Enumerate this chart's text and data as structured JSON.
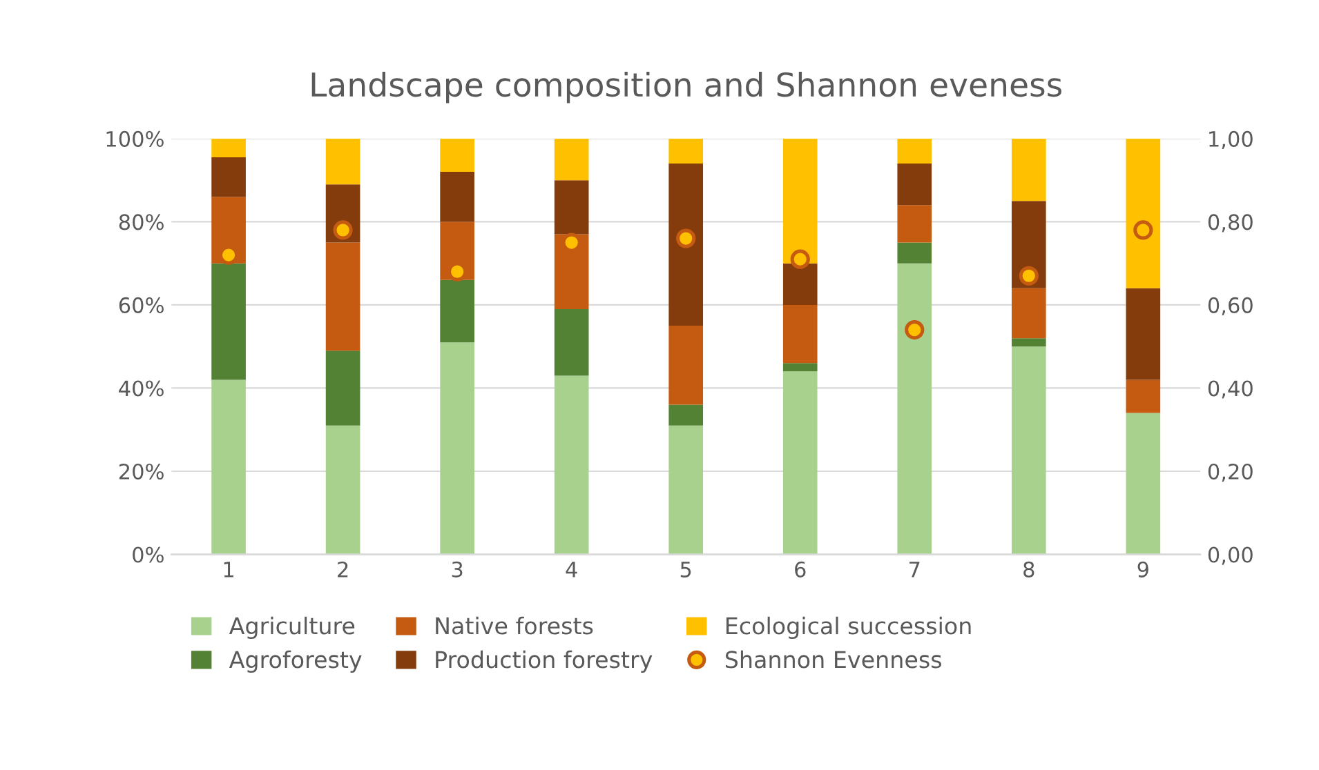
{
  "chart_data": {
    "type": "bar",
    "title": "Landscape composition and Shannon eveness",
    "stacked": true,
    "categories": [
      "1",
      "2",
      "3",
      "4",
      "5",
      "6",
      "7",
      "8",
      "9"
    ],
    "series": [
      {
        "name": "Agriculture",
        "color": "#a9d18e",
        "values": [
          42,
          31,
          51,
          43,
          31,
          44,
          70,
          50,
          34
        ]
      },
      {
        "name": "Agroforesty",
        "color": "#548235",
        "values": [
          28,
          18,
          15,
          16,
          5,
          2,
          5,
          2,
          0
        ]
      },
      {
        "name": "Native forests",
        "color": "#c55a11",
        "values": [
          16,
          26,
          14,
          18,
          19,
          14,
          9,
          12,
          8
        ]
      },
      {
        "name": "Production forestry",
        "color": "#843c0c",
        "values": [
          9.5,
          14,
          12,
          13,
          39,
          10,
          10,
          21,
          22
        ]
      },
      {
        "name": "Ecological succession",
        "color": "#ffc000",
        "values": [
          4.5,
          11,
          8,
          10,
          6,
          30,
          6,
          15,
          36
        ]
      },
      {
        "name": "Shannon Evenness",
        "type": "scatter",
        "axis": "y2",
        "color": "#ffc000",
        "values": [
          0.72,
          0.78,
          0.68,
          0.75,
          0.76,
          0.71,
          0.54,
          0.67,
          0.78
        ]
      }
    ],
    "ylim": [
      0,
      100
    ],
    "yticks": [
      {
        "value": 0,
        "label": "0%"
      },
      {
        "value": 20,
        "label": "20%"
      },
      {
        "value": 40,
        "label": "40%"
      },
      {
        "value": 60,
        "label": "60%"
      },
      {
        "value": 80,
        "label": "80%"
      },
      {
        "value": 100,
        "label": "100%"
      }
    ],
    "y2lim": [
      0,
      1
    ],
    "y2ticks": [
      {
        "value": 0,
        "label": "0,00"
      },
      {
        "value": 0.2,
        "label": "0,20"
      },
      {
        "value": 0.4,
        "label": "0,40"
      },
      {
        "value": 0.6,
        "label": "0,60"
      },
      {
        "value": 0.8,
        "label": "0,80"
      },
      {
        "value": 1,
        "label": "1,00"
      }
    ],
    "grid": "y",
    "legend": "bottom",
    "marker": "circle"
  }
}
